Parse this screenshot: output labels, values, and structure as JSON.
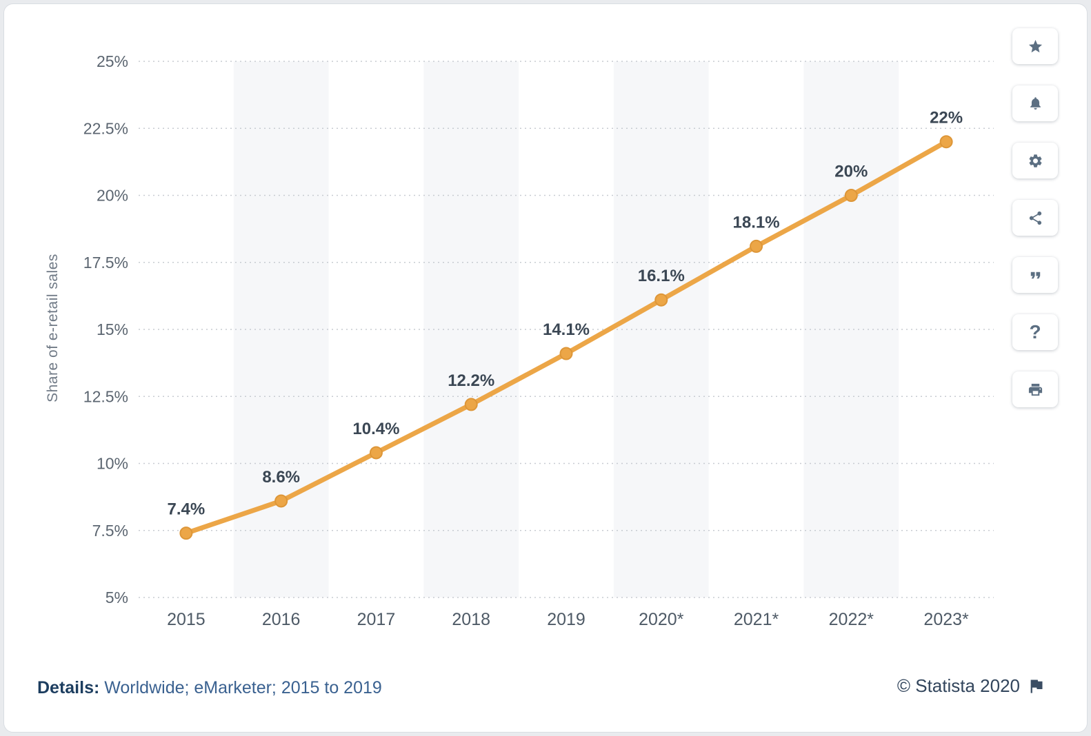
{
  "chart_data": {
    "type": "line",
    "title": "",
    "categories": [
      "2015",
      "2016",
      "2017",
      "2018",
      "2019",
      "2020*",
      "2021*",
      "2022*",
      "2023*"
    ],
    "values": [
      7.4,
      8.6,
      10.4,
      12.2,
      14.1,
      16.1,
      18.1,
      20,
      22
    ],
    "point_labels": [
      "7.4%",
      "8.6%",
      "10.4%",
      "12.2%",
      "14.1%",
      "16.1%",
      "18.1%",
      "20%",
      "22%"
    ],
    "xlabel": "",
    "ylabel": "Share of e-retail sales",
    "ylim": [
      5,
      25
    ],
    "yticks": [
      5,
      7.5,
      10,
      12.5,
      15,
      17.5,
      20,
      22.5,
      25
    ],
    "ytick_labels": [
      "5%",
      "7.5%",
      "10%",
      "12.5%",
      "15%",
      "17.5%",
      "20%",
      "22.5%",
      "25%"
    ],
    "grid": "horizontal-dotted",
    "legend": "none",
    "colors": {
      "line": "#eca647",
      "point_fill": "#eca647",
      "point_stroke": "#dd9638",
      "band": "#f6f7f9",
      "gridline": "#c7cbd1",
      "tick_label": "#5b6570",
      "x_label": "#4e5a66",
      "point_label": "#3b4754",
      "axis_title": "#707a86"
    }
  },
  "toolbar": {
    "items": [
      {
        "name": "favorite",
        "icon": "star-icon"
      },
      {
        "name": "notifications",
        "icon": "bell-icon"
      },
      {
        "name": "settings",
        "icon": "gear-icon"
      },
      {
        "name": "share",
        "icon": "share-icon"
      },
      {
        "name": "cite",
        "icon": "quote-icon"
      },
      {
        "name": "help",
        "icon": "question-icon",
        "glyph": "?"
      },
      {
        "name": "print",
        "icon": "print-icon"
      }
    ]
  },
  "footer": {
    "details_label": "Details:",
    "details_text": " Worldwide; eMarketer; 2015 to 2019",
    "copyright": "© Statista 2020"
  }
}
